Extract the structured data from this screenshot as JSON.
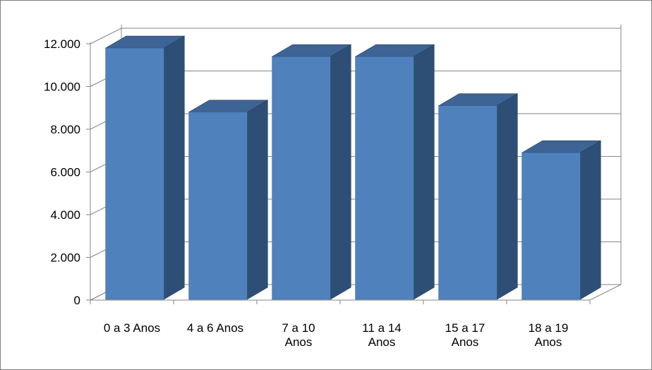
{
  "chart_data": {
    "type": "bar",
    "title": "",
    "xlabel": "",
    "ylabel": "",
    "categories": [
      "0 a 3 Anos",
      "4 a 6 Anos",
      "7 a 10 Anos",
      "11 a 14 Anos",
      "15 a 17 Anos",
      "18 a 19 Anos"
    ],
    "category_lines": [
      [
        "0 a 3 Anos"
      ],
      [
        "4 a 6 Anos"
      ],
      [
        "7 a 10",
        "Anos"
      ],
      [
        "11 a 14",
        "Anos"
      ],
      [
        "15 a 17",
        "Anos"
      ],
      [
        "18 a 19",
        "Anos"
      ]
    ],
    "values": [
      11800,
      8800,
      11400,
      11400,
      9100,
      6900
    ],
    "ylim": [
      0,
      12000
    ],
    "yticks": [
      0,
      2000,
      4000,
      6000,
      8000,
      10000,
      12000
    ],
    "ytick_labels": [
      "0",
      "2.000",
      "4.000",
      "6.000",
      "8.000",
      "10.000",
      "12.000"
    ],
    "grid": true,
    "legend": "none",
    "style": "3d-bar",
    "colors": {
      "front": "#4f81bd",
      "side": "#2e4f75",
      "top": "#3d6494"
    }
  }
}
